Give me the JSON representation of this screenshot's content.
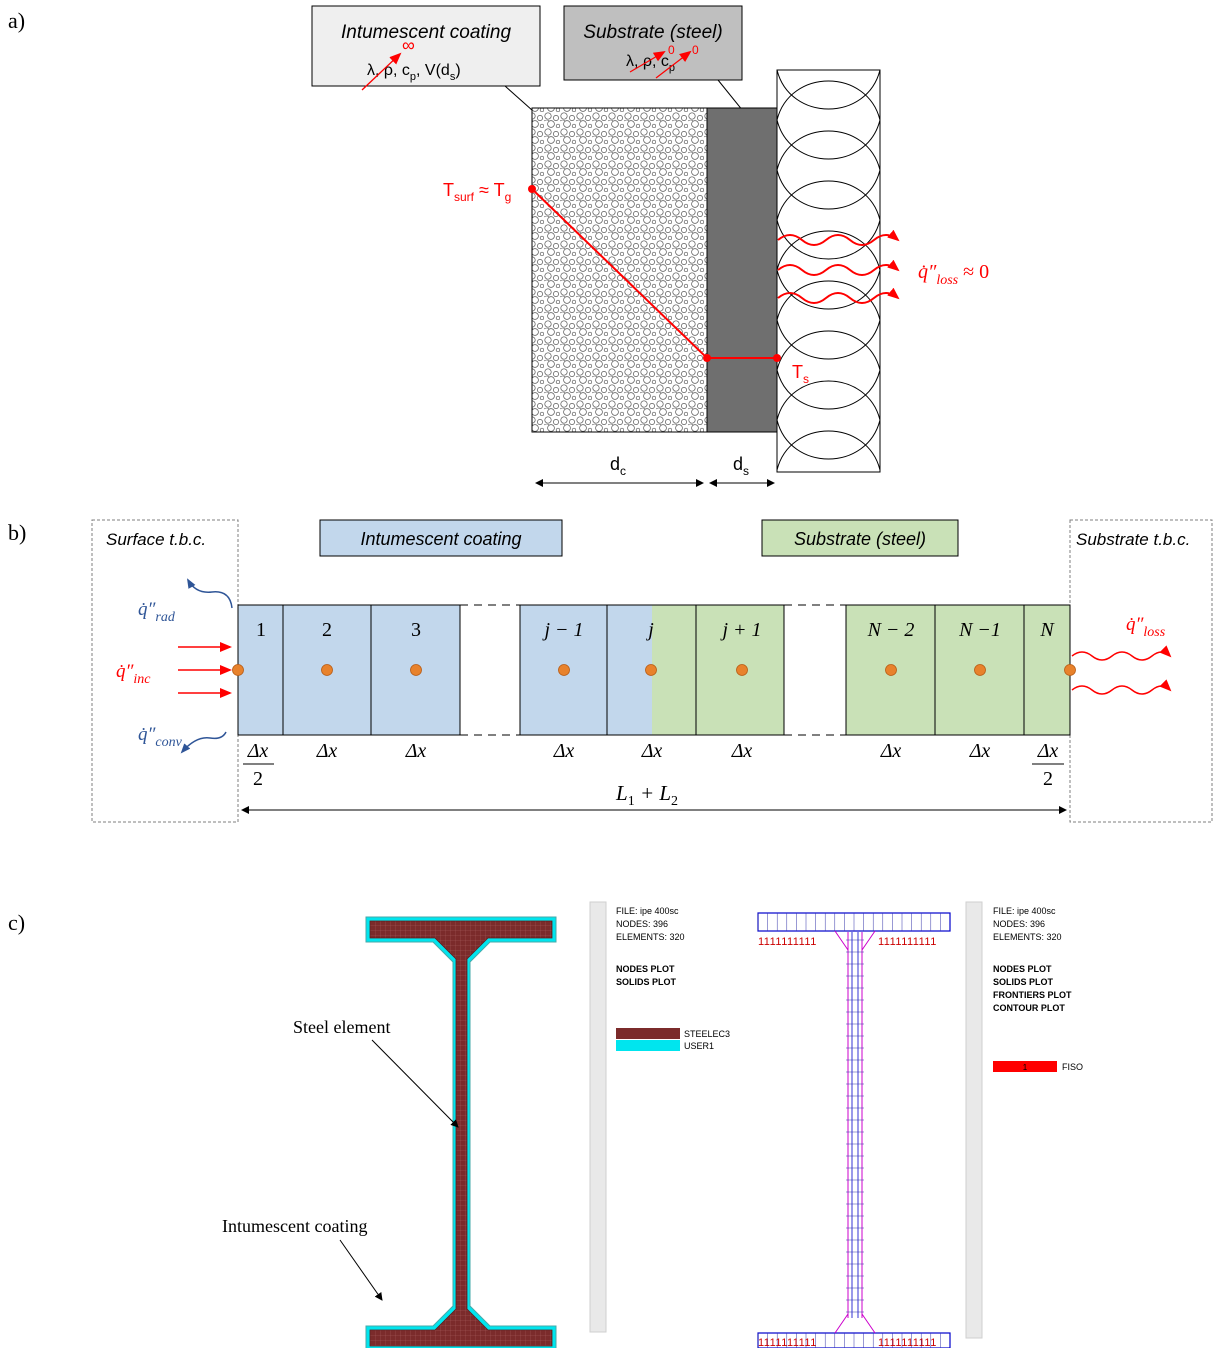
{
  "panel_a": {
    "label": "a)",
    "coating_box": {
      "title": "Intumescent coating",
      "props": "λ, ρ, c",
      "props_sub": "p",
      "props_tail": ", V(d",
      "props_sub2": "s",
      "props_end": ")",
      "infinity": "∞"
    },
    "substrate_box": {
      "title": "Substrate (steel)",
      "props": "λ, ρ, c",
      "props_sub": "p",
      "zero1": "0",
      "zero2": "0"
    },
    "tsurf": {
      "main": "T",
      "sub": "surf",
      "approx": " ≈ T",
      "sub2": "g"
    },
    "ts": {
      "main": "T",
      "sub": "s"
    },
    "qloss": {
      "symbol": "q̇″",
      "sub": "loss",
      "tail": " ≈ 0"
    },
    "dc": {
      "main": "d",
      "sub": "c"
    },
    "ds": {
      "main": "d",
      "sub": "s"
    }
  },
  "panel_b": {
    "label": "b)",
    "surface_bc": "Surface t.b.c.",
    "substrate_bc": "Substrate t.b.c.",
    "coating_label": "Intumescent coating",
    "substrate_label": "Substrate (steel)",
    "cells": [
      "1",
      "2",
      "3",
      "j − 1",
      "j",
      "j + 1",
      "N − 2",
      "N −1",
      "N"
    ],
    "dx": "Δx",
    "half_num": "Δx",
    "half_den": "2",
    "length": "L",
    "length_sub1": "1",
    "length_plus": " + L",
    "length_sub2": "2",
    "q_rad": {
      "symbol": "q̇″",
      "sub": "rad"
    },
    "q_inc": {
      "symbol": "q̇″",
      "sub": "inc"
    },
    "q_conv": {
      "symbol": "q̇″",
      "sub": "conv"
    },
    "q_loss": {
      "symbol": "q̇″",
      "sub": "loss"
    },
    "colors": {
      "coating": "#c2d7ec",
      "steel": "#c9e1b7",
      "node": "#e8822c",
      "flux_in": "#ff0000",
      "flux_out": "#2f5597"
    }
  },
  "panel_c": {
    "label": "c)",
    "steel_label": "Steel element",
    "coating_label": "Intumescent coating",
    "left_info": [
      "FILE: ipe 400sc",
      "NODES: 396",
      "ELEMENTS: 320"
    ],
    "left_plots": [
      "NODES PLOT",
      "SOLIDS PLOT"
    ],
    "left_legend": [
      {
        "name": "STEELEC3",
        "color": "#7b2b2b"
      },
      {
        "name": "USER1",
        "color": "#00e5ee"
      }
    ],
    "right_info": [
      "FILE: ipe 400sc",
      "NODES: 396",
      "ELEMENTS: 320"
    ],
    "right_plots": [
      "NODES PLOT",
      "SOLIDS PLOT",
      "FRONTIERS PLOT",
      "CONTOUR PLOT"
    ],
    "right_legend": {
      "name": "FISO",
      "tag": "1",
      "color": "#ff0000"
    },
    "flange_marks": "1111111111"
  }
}
